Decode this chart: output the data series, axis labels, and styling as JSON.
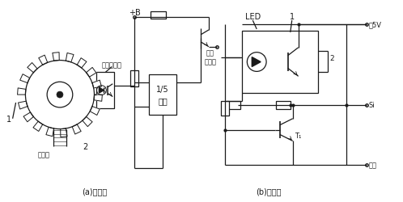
{
  "bg_color": "#ffffff",
  "line_color": "#1a1a1a",
  "title_left": "(a)示意图",
  "title_right": "(b)电路图",
  "label_guangdian_top": "光电耦合器",
  "label_qudongzhou": "驱动轴",
  "label_1_left": "1",
  "label_2_left": "2",
  "label_plusB": "+B",
  "label_fenpin": "1/5\n分频",
  "label_LED": "LED",
  "label_1_right": "1",
  "label_2_right": "2",
  "label_guangdian_right": "光电\n耦合器",
  "label_5V": "约5V",
  "label_Si": "Si",
  "label_T1": "T₁",
  "label_jiezhi": "接地"
}
